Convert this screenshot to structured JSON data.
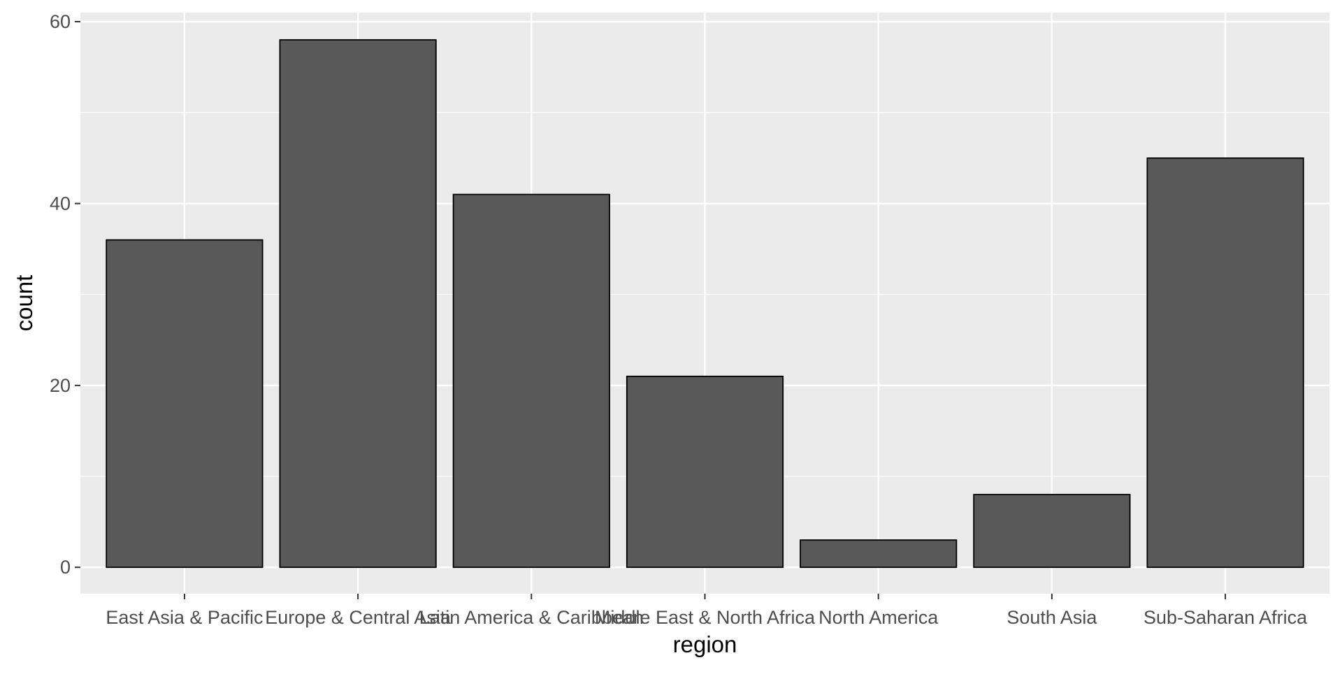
{
  "chart_data": {
    "type": "bar",
    "title": "",
    "xlabel": "region",
    "ylabel": "count",
    "categories": [
      "East Asia & Pacific",
      "Europe & Central Asia",
      "Latin America & Caribbean",
      "Middle East & North Africa",
      "North America",
      "South Asia",
      "Sub-Saharan Africa"
    ],
    "values": [
      36,
      58,
      41,
      21,
      3,
      8,
      45
    ],
    "ylim": [
      -2.9,
      61.0
    ],
    "yticks": [
      0,
      20,
      40,
      60
    ],
    "grid": true,
    "legend": "none",
    "colors": {
      "panel_background": "#ebebeb",
      "grid_line": "#ffffff",
      "bar_fill": "#595959",
      "bar_outline": "#000000",
      "tick_text": "#4d4d4d",
      "tick_mark": "#333333",
      "axis_title": "#000000"
    }
  }
}
